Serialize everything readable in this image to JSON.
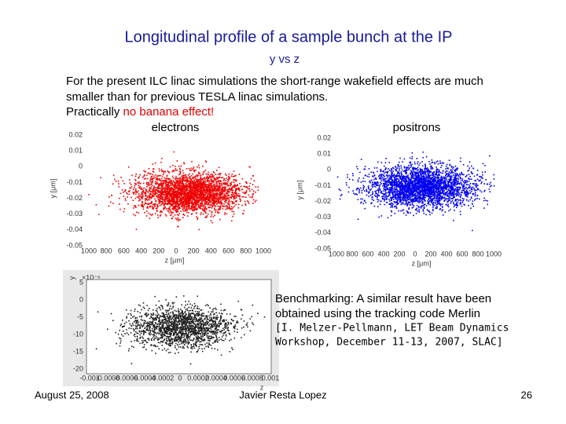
{
  "title": "Longitudinal profile of a sample bunch at the IP",
  "subtitle": "y vs z",
  "body": [
    "For the present ILC linac simulations the short-range wakefield effects are much",
    "smaller than for previous TESLA linac simulations."
  ],
  "emphasis_line": {
    "text": "Practically ",
    "highlight": "no banana effect!"
  },
  "plots": [
    {
      "label": "electrons",
      "y_label": "y [μm]",
      "x_label": "z [μm]",
      "yticks": [
        "0.02",
        "0.01",
        "0",
        "-0.01",
        "-0.02",
        "-0.03",
        "-0.04",
        "-0.05"
      ],
      "xticks": [
        "1000",
        "800",
        "600",
        "400",
        "200",
        "0",
        "200",
        "400",
        "600",
        "800",
        "1000"
      ]
    },
    {
      "label": "positrons",
      "y_label": "y [μm]",
      "x_label": "z [μm]",
      "yticks": [
        "0.02",
        "0.01",
        "0",
        "-0.01",
        "-0.02",
        "-0.03",
        "-0.04",
        "-0.05"
      ],
      "xticks": [
        "1000",
        "800",
        "600",
        "400",
        "200",
        "0",
        "200",
        "400",
        "600",
        "800",
        "1000"
      ]
    },
    {
      "y_label": "y",
      "y_scale": "×10⁻⁶",
      "x_label": "z",
      "yticks": [
        "5",
        "0",
        "-5",
        "-10",
        "-15",
        "-20"
      ],
      "xticks": [
        "-0.001",
        "-0.0008",
        "-0.0006",
        "-0.0004",
        "-0.0002",
        "0",
        "0.0002",
        "0.0004",
        "0.0006",
        "0.0008",
        "0.001"
      ]
    }
  ],
  "benchmark": [
    "Benchmarking: A similar result have been",
    "obtained using the tracking code Merlin"
  ],
  "citation": [
    "[I. Melzer-Pellmann, LET Beam Dynamics",
    "Workshop, December 11-13, 2007, SLAC]"
  ],
  "footer": {
    "date": "August 25, 2008",
    "author": "Javier Resta Lopez",
    "page": "26"
  }
}
